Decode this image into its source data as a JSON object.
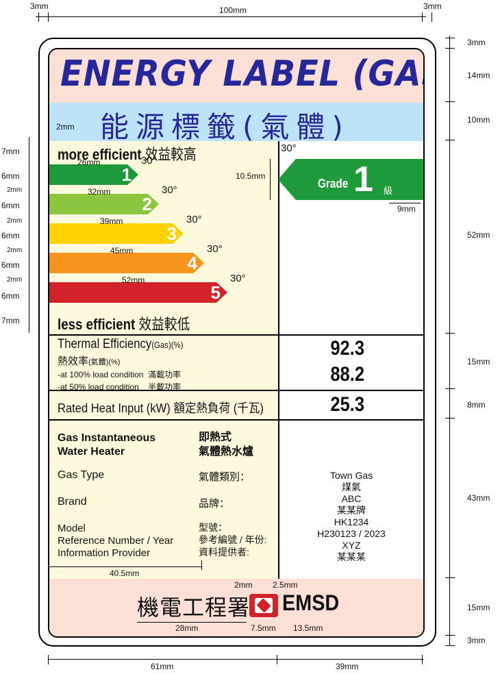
{
  "dimensions": {
    "top_left": "3mm",
    "top_center": "100mm",
    "top_right": "3mm",
    "right": [
      "3mm",
      "14mm",
      "10mm",
      "52mm",
      "15mm",
      "8mm",
      "43mm",
      "15mm",
      "3mm"
    ],
    "left": [
      "7mm",
      "6mm",
      "2mm",
      "6mm",
      "2mm",
      "6mm",
      "2mm",
      "6mm",
      "2mm",
      "6mm",
      "7mm"
    ],
    "bottom_left": "61mm",
    "bottom_right": "39mm",
    "zh_title_offset": "2mm",
    "bar_lengths": [
      "26mm",
      "32mm",
      "39mm",
      "45mm",
      "52mm"
    ],
    "arrow_height": "10.5mm",
    "arrow_tip": "9mm",
    "angle": "30°",
    "info_col_width": "40.5mm",
    "logo_gap_left": "2mm",
    "logo_gap_right": "2.5mm",
    "logo_text_zh_width": "28mm",
    "logo_mark_width": "7.5mm",
    "logo_text_en_width": "13.5mm"
  },
  "title_en": "ENERGY LABEL (GAS)",
  "title_zh": "能源標籤(氣體)",
  "scale": {
    "more_efficient": "more efficient",
    "more_efficient_zh": "效益較高",
    "less_efficient": "less efficient",
    "less_efficient_zh": "效益較低",
    "grades": [
      "1",
      "2",
      "3",
      "4",
      "5"
    ],
    "colors": [
      "#1f9a3a",
      "#8cc63f",
      "#ffd200",
      "#f7941d",
      "#d2232a"
    ]
  },
  "grade": {
    "label": "Grade",
    "value": "1",
    "label_zh": "級",
    "color": "#1f9a3a"
  },
  "thermal": {
    "title": "Thermal Efficiency",
    "title_suffix": "(Gas)(%)",
    "title_zh": "熱效率",
    "title_zh_suffix": "(氣體)(%)",
    "load100": "-at 100% load condition",
    "load100_zh": "滿載功率",
    "load50": "-at 50% load condition",
    "load50_zh": "半載功率",
    "value100": "92.3",
    "value50": "88.2"
  },
  "heat_input": {
    "label": "Rated Heat Input (kW) 額定熱負荷 (千瓦)",
    "value": "25.3"
  },
  "info": {
    "type_en_1": "Gas Instantaneous",
    "type_en_2": "Water Heater",
    "type_zh_1": "即熱式",
    "type_zh_2": "氣體熱水爐",
    "gas_type": "Gas Type",
    "gas_type_zh": "氣體類別：",
    "gas_type_value": "Town Gas",
    "gas_type_value_zh": "煤氣",
    "brand": "Brand",
    "brand_zh": "品牌：",
    "brand_value": "ABC",
    "brand_value_zh": "某某牌",
    "model": "Model",
    "model_zh": "型號：",
    "model_value": "HK1234",
    "ref": "Reference Number / Year",
    "ref_zh": "參考編號 / 年份:",
    "ref_value": "H230123 / 2023",
    "provider": "Information Provider",
    "provider_zh": "資料提供者:",
    "provider_value": "XYZ",
    "provider_value_zh": "某某某"
  },
  "footer": {
    "agency_zh": "機電工程署",
    "agency_en": "EMSD"
  }
}
